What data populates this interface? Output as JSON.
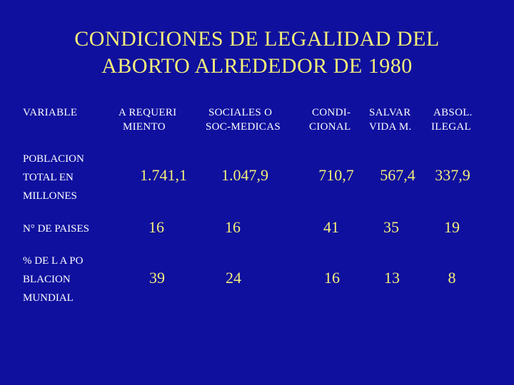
{
  "slide": {
    "title_line1": "CONDICIONES DE LEGALIDAD DEL",
    "title_line2": "ABORTO ALREDEDOR DE 1980"
  },
  "table": {
    "headers": [
      {
        "line1": "VARIABLE",
        "line2": ""
      },
      {
        "line1": "A REQUERI",
        "line2": "MIENTO"
      },
      {
        "line1": "SOCIALES O",
        "line2": "SOC-MEDICAS"
      },
      {
        "line1": "CONDI-",
        "line2": "CIONAL"
      },
      {
        "line1": "SALVAR",
        "line2": "VIDA M."
      },
      {
        "line1": "ABSOL.",
        "line2": "ILEGAL"
      }
    ],
    "rows": [
      {
        "label": [
          "POBLACION",
          "TOTAL  EN",
          "MILLONES"
        ],
        "values": [
          "1.741,1",
          "1.047,9",
          "710,7",
          "567,4",
          "337,9"
        ]
      },
      {
        "label": [
          "N° DE PAISES"
        ],
        "values": [
          "16",
          "16",
          "41",
          "35",
          "19"
        ]
      },
      {
        "label": [
          "% DE  L A PO",
          "BLACION",
          "MUNDIAL"
        ],
        "values": [
          "39",
          "24",
          "16",
          "13",
          "8"
        ]
      }
    ]
  },
  "colors": {
    "background": "#0f109e",
    "title": "#f4ee7a",
    "values": "#f4ee7a",
    "labels": "#ffffff"
  }
}
